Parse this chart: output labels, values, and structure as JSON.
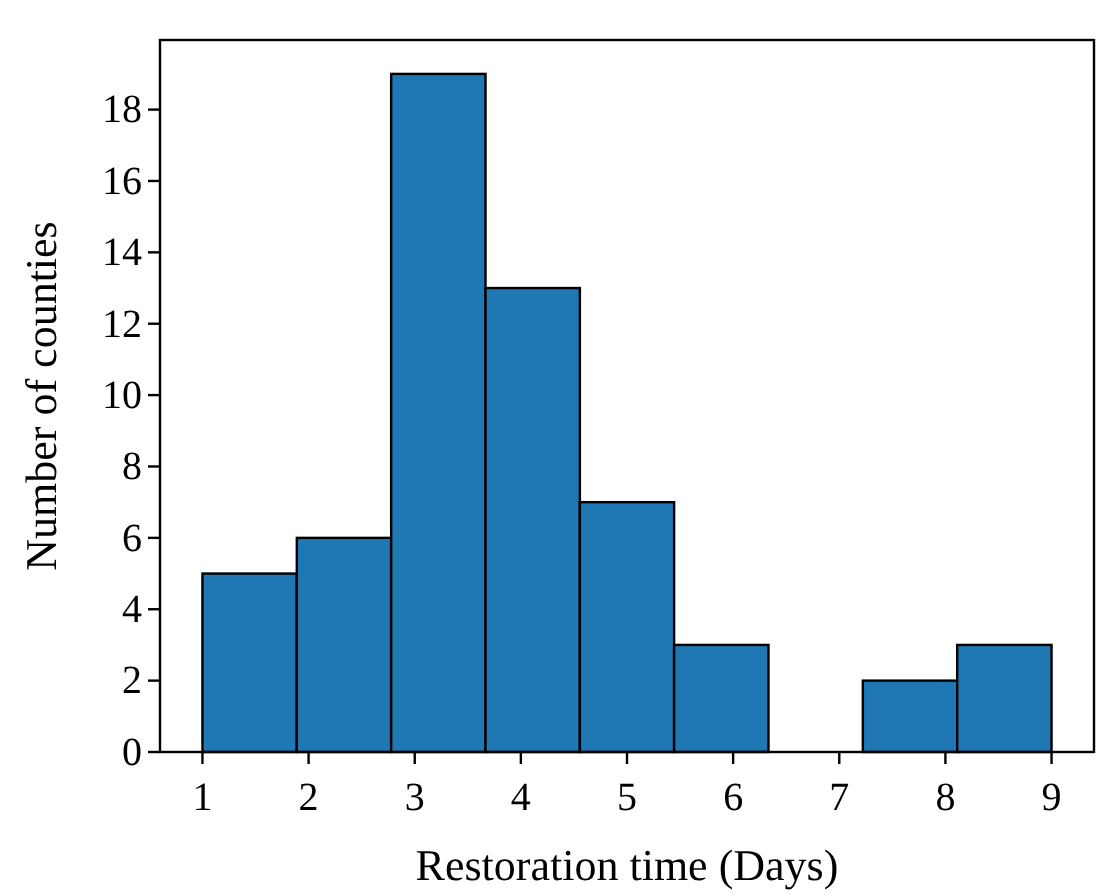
{
  "chart_data": {
    "type": "histogram",
    "xlabel": "Restoration time (Days)",
    "ylabel": "Number of counties",
    "bins": [
      1,
      1.889,
      2.778,
      3.667,
      4.556,
      5.444,
      6.333,
      7.222,
      8.111,
      9
    ],
    "values": [
      5,
      6,
      19,
      13,
      7,
      3,
      0,
      2,
      3
    ],
    "color": "#1f77b4",
    "xlim": [
      0.6,
      9.4
    ],
    "xticks": [
      1,
      2,
      3,
      4,
      5,
      6,
      7,
      8,
      9
    ],
    "ylim": [
      0,
      19.95
    ],
    "yticks": [
      0,
      2,
      4,
      6,
      8,
      10,
      12,
      14,
      16,
      18
    ],
    "grid": false
  }
}
